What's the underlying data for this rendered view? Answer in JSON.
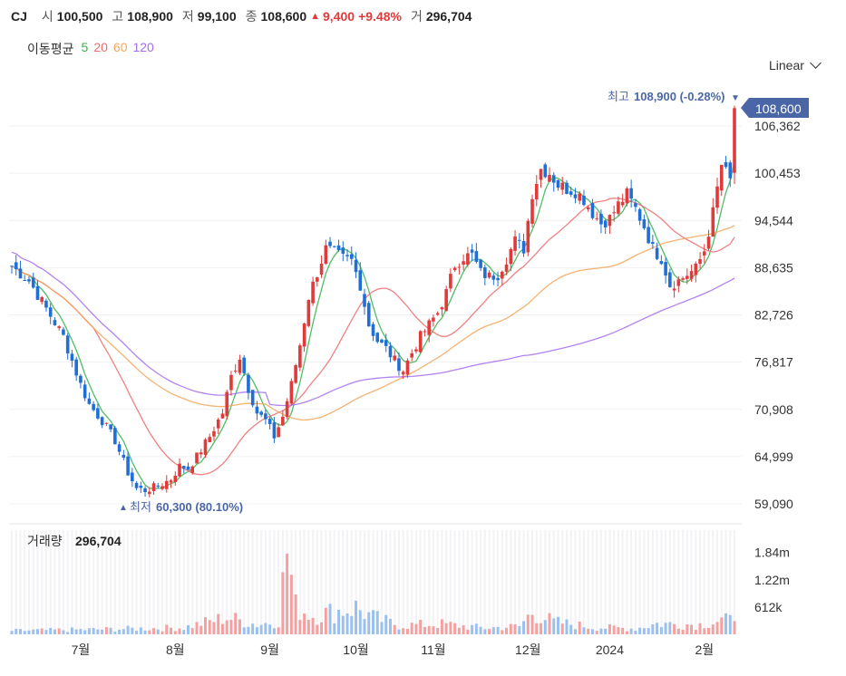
{
  "header": {
    "name": "CJ",
    "open_label": "시",
    "open": "100,500",
    "high_label": "고",
    "high": "108,900",
    "low_label": "저",
    "low": "99,100",
    "close_label": "종",
    "close": "108,600",
    "change_arrow": "▲",
    "change": "9,400",
    "change_pct": "+9.48%",
    "volume_label": "거",
    "volume": "296,704"
  },
  "moving_average": {
    "label": "이동평균",
    "items": [
      {
        "period": "5",
        "color": "#33b24a"
      },
      {
        "period": "20",
        "color": "#ef6a6a"
      },
      {
        "period": "60",
        "color": "#f5a55a"
      },
      {
        "period": "120",
        "color": "#a56cf0"
      }
    ]
  },
  "scale_selector": {
    "label": "Linear"
  },
  "price_axis": {
    "ticks": [
      "106,362",
      "100,453",
      "94,544",
      "88,635",
      "82,726",
      "76,817",
      "70,908",
      "64,999",
      "59,090"
    ]
  },
  "last_price_label": "108,600",
  "high_annotation": {
    "label": "최고",
    "value": "108,900 (-0.28%)",
    "arrow": "▼"
  },
  "low_annotation": {
    "label": "최저",
    "value": "60,300 (80.10%)",
    "arrow": "▲"
  },
  "volume_panel": {
    "label": "거래량",
    "value": "296,704",
    "ticks": [
      "1.84m",
      "1.22m",
      "612k"
    ]
  },
  "x_axis": {
    "ticks": [
      "7월",
      "8월",
      "9월",
      "10월",
      "11월",
      "12월",
      "2024",
      "2월"
    ]
  },
  "colors": {
    "up": "#e03a3a",
    "down": "#1f6fd6",
    "up_volume": "#f4a0a0",
    "down_volume": "#9cc0ee",
    "label_box": "#4a66a6"
  },
  "chart_data": {
    "type": "candlestick",
    "price_range": [
      58000,
      110500
    ],
    "volume_range": [
      0,
      2300000
    ],
    "months": [
      {
        "label": "7월",
        "start_index": 16
      },
      {
        "label": "8월",
        "start_index": 38
      },
      {
        "label": "9월",
        "start_index": 60
      },
      {
        "label": "10월",
        "start_index": 80
      },
      {
        "label": "11월",
        "start_index": 98
      },
      {
        "label": "12월",
        "start_index": 120
      },
      {
        "label": "2024",
        "start_index": 139
      },
      {
        "label": "2월",
        "start_index": 161
      }
    ],
    "price_anchors": [
      [
        0,
        88800
      ],
      [
        4,
        87000
      ],
      [
        8,
        83500
      ],
      [
        12,
        80000
      ],
      [
        16,
        74000
      ],
      [
        18,
        71500
      ],
      [
        21,
        69500
      ],
      [
        24,
        67000
      ],
      [
        27,
        63000
      ],
      [
        29,
        61000
      ],
      [
        31,
        60800
      ],
      [
        34,
        61300
      ],
      [
        37,
        62200
      ],
      [
        39,
        63800
      ],
      [
        41,
        63500
      ],
      [
        43,
        65000
      ],
      [
        46,
        67500
      ],
      [
        49,
        70500
      ],
      [
        51,
        75000
      ],
      [
        53,
        77500
      ],
      [
        55,
        73500
      ],
      [
        57,
        70500
      ],
      [
        59,
        69500
      ],
      [
        61,
        67500
      ],
      [
        63,
        70000
      ],
      [
        65,
        74000
      ],
      [
        67,
        79000
      ],
      [
        69,
        85000
      ],
      [
        71,
        88000
      ],
      [
        73,
        91000
      ],
      [
        75,
        90500
      ],
      [
        77,
        89800
      ],
      [
        79,
        89500
      ],
      [
        81,
        86500
      ],
      [
        83,
        81500
      ],
      [
        85,
        79500
      ],
      [
        87,
        78500
      ],
      [
        89,
        77000
      ],
      [
        91,
        75800
      ],
      [
        93,
        78000
      ],
      [
        95,
        80000
      ],
      [
        97,
        81500
      ],
      [
        99,
        83000
      ],
      [
        101,
        85500
      ],
      [
        103,
        89000
      ],
      [
        105,
        90000
      ],
      [
        107,
        90200
      ],
      [
        109,
        88000
      ],
      [
        111,
        87500
      ],
      [
        113,
        87800
      ],
      [
        115,
        89800
      ],
      [
        117,
        92000
      ],
      [
        119,
        91000
      ],
      [
        121,
        98000
      ],
      [
        123,
        101000
      ],
      [
        125,
        100500
      ],
      [
        127,
        99000
      ],
      [
        129,
        98500
      ],
      [
        131,
        98200
      ],
      [
        133,
        97200
      ],
      [
        135,
        95500
      ],
      [
        137,
        94200
      ],
      [
        139,
        94800
      ],
      [
        141,
        96500
      ],
      [
        143,
        97800
      ],
      [
        145,
        96000
      ],
      [
        147,
        93800
      ],
      [
        149,
        91000
      ],
      [
        151,
        89800
      ],
      [
        153,
        86500
      ],
      [
        155,
        87000
      ],
      [
        157,
        87800
      ],
      [
        159,
        88500
      ],
      [
        161,
        90800
      ],
      [
        163,
        95500
      ],
      [
        165,
        101500
      ],
      [
        167,
        99500
      ],
      [
        168,
        108600
      ]
    ],
    "volume_anchors": [
      [
        0,
        80000
      ],
      [
        20,
        110000
      ],
      [
        40,
        150000
      ],
      [
        50,
        380000
      ],
      [
        57,
        220000
      ],
      [
        62,
        300000
      ],
      [
        64,
        1900000
      ],
      [
        66,
        620000
      ],
      [
        70,
        420000
      ],
      [
        80,
        600000
      ],
      [
        84,
        380000
      ],
      [
        90,
        200000
      ],
      [
        100,
        230000
      ],
      [
        110,
        140000
      ],
      [
        118,
        180000
      ],
      [
        121,
        500000
      ],
      [
        126,
        280000
      ],
      [
        135,
        160000
      ],
      [
        145,
        130000
      ],
      [
        150,
        240000
      ],
      [
        160,
        220000
      ],
      [
        165,
        320000
      ],
      [
        168,
        296704
      ]
    ],
    "series": [
      {
        "name": "5",
        "type": "ma",
        "period": 5
      },
      {
        "name": "20",
        "type": "ma",
        "period": 20
      },
      {
        "name": "60",
        "type": "ma",
        "period": 60
      },
      {
        "name": "120",
        "type": "ma",
        "period": 120
      }
    ]
  }
}
